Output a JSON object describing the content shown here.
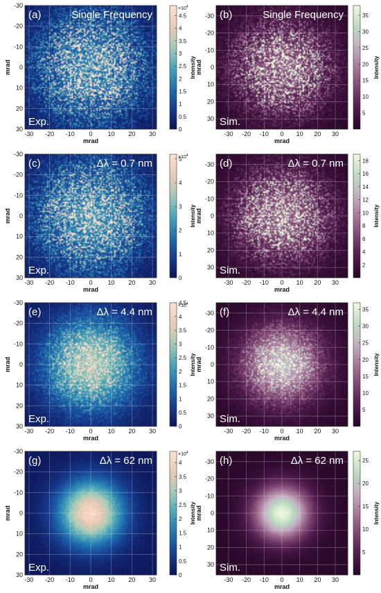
{
  "axis_unit": "mrad",
  "colorbar_label": "Intensity",
  "exp_scale_exp": "×10",
  "exp_scale_pow": "4",
  "chart_data": [
    {
      "type": "heatmap",
      "panel": "(a)",
      "title": "Single Frequency",
      "corner": "Exp.",
      "xlabel": "mrad",
      "ylabel": "mrad",
      "xticks": [
        -30,
        -20,
        -10,
        0,
        10,
        20,
        30
      ],
      "yticks": [
        -30,
        -20,
        -10,
        0,
        10,
        20,
        30
      ],
      "xlim": [
        -32,
        32
      ],
      "ylim": [
        -30,
        30
      ],
      "colorbar": {
        "ticks": [
          "0",
          "0.5",
          "1",
          "1.5",
          "2",
          "2.5",
          "3",
          "3.5",
          "4",
          "4.5"
        ],
        "max": 4.9,
        "scale_exp": "4",
        "cmap": "exp"
      },
      "spot_width": 17,
      "speckle": 0.7
    },
    {
      "type": "heatmap",
      "panel": "(b)",
      "title": "Single Frequency",
      "corner": "Sim.",
      "xlabel": "mrad",
      "ylabel": "mrad",
      "xticks": [
        -30,
        -20,
        -10,
        0,
        10,
        20,
        30
      ],
      "yticks": [
        -30,
        -20,
        -10,
        0,
        10,
        20,
        30
      ],
      "xlim": [
        -37,
        37
      ],
      "ylim": [
        -36,
        36
      ],
      "colorbar": {
        "ticks": [
          "5",
          "10",
          "15",
          "20",
          "25",
          "30",
          "35"
        ],
        "max": 38,
        "scale_exp": "",
        "cmap": "sim"
      },
      "spot_width": 17,
      "speckle": 0.7
    },
    {
      "type": "heatmap",
      "panel": "(c)",
      "title": "Δλ = 0.7 nm",
      "corner": "Exp.",
      "xlabel": "mrad",
      "ylabel": "mrad",
      "xticks": [
        -30,
        -20,
        -10,
        0,
        10,
        20,
        30
      ],
      "yticks": [
        -30,
        -20,
        -10,
        0,
        10,
        20,
        30
      ],
      "xlim": [
        -32,
        32
      ],
      "ylim": [
        -30,
        30
      ],
      "colorbar": {
        "ticks": [
          "0",
          "1",
          "2",
          "3",
          "4",
          "5"
        ],
        "max": 5.2,
        "scale_exp": "4",
        "cmap": "exp"
      },
      "spot_width": 17,
      "speckle": 0.65
    },
    {
      "type": "heatmap",
      "panel": "(d)",
      "title": "Δλ = 0.7 nm",
      "corner": "Sim.",
      "xlabel": "mrad",
      "ylabel": "mrad",
      "xticks": [
        -30,
        -20,
        -10,
        0,
        10,
        20,
        30
      ],
      "yticks": [
        -30,
        -20,
        -10,
        0,
        10,
        20,
        30
      ],
      "xlim": [
        -37,
        37
      ],
      "ylim": [
        -36,
        36
      ],
      "colorbar": {
        "ticks": [
          "2",
          "4",
          "6",
          "8",
          "10",
          "12",
          "14",
          "16",
          "18"
        ],
        "max": 19,
        "scale_exp": "",
        "cmap": "sim"
      },
      "spot_width": 17,
      "speckle": 0.65
    },
    {
      "type": "heatmap",
      "panel": "(e)",
      "title": "Δλ = 4.4 nm",
      "corner": "Exp.",
      "xlabel": "mrad",
      "ylabel": "mrad",
      "xticks": [
        -30,
        -20,
        -10,
        0,
        10,
        20,
        30
      ],
      "yticks": [
        -30,
        -20,
        -10,
        0,
        10,
        20,
        30
      ],
      "xlim": [
        -32,
        32
      ],
      "ylim": [
        -30,
        30
      ],
      "colorbar": {
        "ticks": [
          "0",
          "0.5",
          "1",
          "1.5",
          "2",
          "2.5",
          "3",
          "3.5",
          "4",
          "4.5"
        ],
        "max": 4.5,
        "scale_exp": "4",
        "cmap": "exp"
      },
      "spot_width": 15,
      "speckle": 0.35
    },
    {
      "type": "heatmap",
      "panel": "(f)",
      "title": "Δλ = 4.4 nm",
      "corner": "Sim.",
      "xlabel": "mrad",
      "ylabel": "mrad",
      "xticks": [
        -30,
        -20,
        -10,
        0,
        10,
        20,
        30
      ],
      "yticks": [
        -30,
        -20,
        -10,
        0,
        10,
        20,
        30
      ],
      "xlim": [
        -37,
        37
      ],
      "ylim": [
        -36,
        36
      ],
      "colorbar": {
        "ticks": [
          "5",
          "10",
          "15",
          "20",
          "25",
          "30",
          "35"
        ],
        "max": 37,
        "scale_exp": "",
        "cmap": "sim"
      },
      "spot_width": 15,
      "speckle": 0.35
    },
    {
      "type": "heatmap",
      "panel": "(g)",
      "title": "Δλ = 62 nm",
      "corner": "Exp.",
      "xlabel": "mrad",
      "ylabel": "mrad",
      "xticks": [
        -30,
        -20,
        -10,
        0,
        10,
        20,
        30
      ],
      "yticks": [
        -30,
        -20,
        -10,
        0,
        10,
        20,
        30
      ],
      "xlim": [
        -32,
        32
      ],
      "ylim": [
        -30,
        30
      ],
      "colorbar": {
        "ticks": [
          "0",
          "0.5",
          "1",
          "1.5",
          "2",
          "2.5",
          "3",
          "3.5",
          "4"
        ],
        "max": 4.4,
        "scale_exp": "4",
        "cmap": "exp"
      },
      "spot_width": 11,
      "speckle": 0.06
    },
    {
      "type": "heatmap",
      "panel": "(h)",
      "title": "Δλ = 62 nm",
      "corner": "Sim.",
      "xlabel": "mrad",
      "ylabel": "mrad",
      "xticks": [
        -30,
        -20,
        -10,
        0,
        10,
        20,
        30
      ],
      "yticks": [
        -30,
        -20,
        -10,
        0,
        10,
        20,
        30
      ],
      "xlim": [
        -37,
        37
      ],
      "ylim": [
        -36,
        36
      ],
      "colorbar": {
        "ticks": [
          "5",
          "10",
          "15",
          "20",
          "25"
        ],
        "max": 27,
        "scale_exp": "",
        "cmap": "sim"
      },
      "spot_width": 11,
      "speckle": 0.0
    }
  ]
}
